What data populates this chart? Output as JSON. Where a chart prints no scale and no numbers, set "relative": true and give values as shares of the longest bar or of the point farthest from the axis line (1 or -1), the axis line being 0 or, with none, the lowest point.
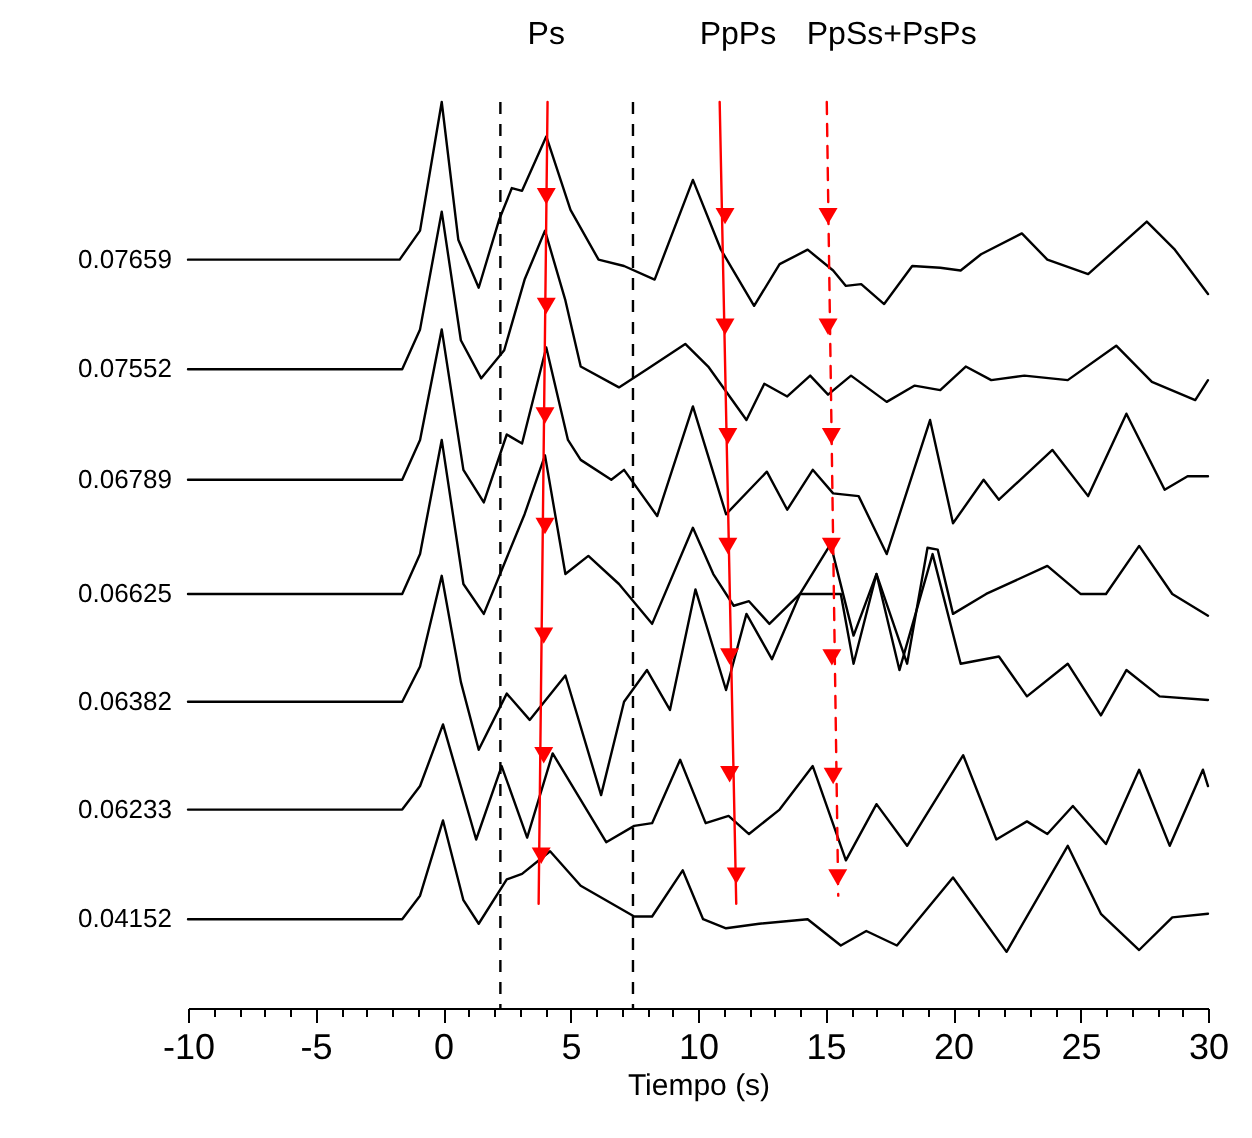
{
  "chart_data": {
    "type": "line",
    "relative": true,
    "xlabel": "Tiempo (s)",
    "xlim": [
      -10,
      30
    ],
    "xticks": [
      -10,
      {
        "value": -9,
        "label": null
      },
      {
        "value": -8,
        "label": null
      },
      {
        "value": -7,
        "label": null
      },
      {
        "value": -6,
        "label": null
      },
      -5,
      {
        "value": -4,
        "label": null
      },
      {
        "value": -3,
        "label": null
      },
      {
        "value": -2,
        "label": null
      },
      {
        "value": -1,
        "label": null
      },
      0,
      {
        "value": 1,
        "label": null
      },
      {
        "value": 2,
        "label": null
      },
      {
        "value": 3,
        "label": null
      },
      {
        "value": 4,
        "label": null
      },
      5,
      {
        "value": 6,
        "label": null
      },
      {
        "value": 7,
        "label": null
      },
      {
        "value": 8,
        "label": null
      },
      {
        "value": 9,
        "label": null
      },
      10,
      {
        "value": 11,
        "label": null
      },
      {
        "value": 12,
        "label": null
      },
      {
        "value": 13,
        "label": null
      },
      {
        "value": 14,
        "label": null
      },
      15,
      {
        "value": 16,
        "label": null
      },
      {
        "value": 17,
        "label": null
      },
      {
        "value": 18,
        "label": null
      },
      {
        "value": 19,
        "label": null
      },
      20,
      {
        "value": 21,
        "label": null
      },
      {
        "value": 22,
        "label": null
      },
      {
        "value": 23,
        "label": null
      },
      {
        "value": 24,
        "label": null
      },
      25,
      {
        "value": 26,
        "label": null
      },
      {
        "value": 27,
        "label": null
      },
      {
        "value": 28,
        "label": null
      },
      {
        "value": 29,
        "label": null
      },
      30
    ],
    "ref_lines": [
      {
        "axis": "x",
        "value": 2.25,
        "color": "#000000",
        "line_style": "dashed"
      },
      {
        "axis": "x",
        "value": 7.45,
        "color": "#000000",
        "line_style": "dashed"
      }
    ],
    "series": [
      {
        "name": "0.07659",
        "color": "#000000",
        "x": [
          -10,
          -1.7,
          -0.9,
          -0.05,
          0.6,
          1.4,
          2.2,
          2.7,
          3.1,
          4.05,
          5.0,
          6.1,
          7.1,
          8.3,
          9.8,
          10.9,
          12.2,
          13.2,
          14.3,
          15.3,
          15.8,
          16.4,
          17.3,
          18.4,
          19.5,
          20.3,
          21.1,
          22.7,
          23.7,
          25.3,
          27.6,
          28.7,
          30
        ],
        "values": [
          0.826,
          0.826,
          0.858,
          1,
          0.848,
          0.795,
          0.87,
          0.905,
          0.902,
          0.962,
          0.881,
          0.826,
          0.819,
          0.804,
          0.914,
          0.837,
          0.775,
          0.821,
          0.837,
          0.814,
          0.797,
          0.799,
          0.777,
          0.819,
          0.817,
          0.814,
          0.832,
          0.855,
          0.826,
          0.81,
          0.868,
          0.837,
          0.788
        ]
      },
      {
        "name": "0.07552",
        "color": "#000000",
        "x": [
          -10,
          -1.6,
          -0.9,
          -0.05,
          0.7,
          1.5,
          2.4,
          3.2,
          4.0,
          4.8,
          5.4,
          6.9,
          8.0,
          9.5,
          10.4,
          11.9,
          12.6,
          13.5,
          14.4,
          15.1,
          16.0,
          17.4,
          18.5,
          19.5,
          20.5,
          21.5,
          22.8,
          24.5,
          26.4,
          27.8,
          29.5,
          30
        ],
        "values": [
          0.705,
          0.705,
          0.749,
          0.879,
          0.737,
          0.695,
          0.726,
          0.804,
          0.858,
          0.781,
          0.708,
          0.685,
          0.705,
          0.733,
          0.708,
          0.649,
          0.689,
          0.675,
          0.698,
          0.677,
          0.698,
          0.669,
          0.687,
          0.682,
          0.708,
          0.693,
          0.698,
          0.693,
          0.731,
          0.691,
          0.671,
          0.693
        ]
      },
      {
        "name": "0.06789",
        "color": "#000000",
        "x": [
          -10,
          -1.6,
          -0.9,
          -0.05,
          0.8,
          1.6,
          2.5,
          3.1,
          4.05,
          4.9,
          5.4,
          6.6,
          7.1,
          8.4,
          9.8,
          11.1,
          12.7,
          13.5,
          14.5,
          15.3,
          16.3,
          17.4,
          19.1,
          20.0,
          21.2,
          21.8,
          23.9,
          25.3,
          26.8,
          28.3,
          29.2,
          30
        ],
        "values": [
          0.583,
          0.583,
          0.627,
          0.749,
          0.594,
          0.558,
          0.633,
          0.623,
          0.729,
          0.627,
          0.605,
          0.583,
          0.594,
          0.543,
          0.664,
          0.545,
          0.592,
          0.55,
          0.594,
          0.568,
          0.565,
          0.501,
          0.649,
          0.535,
          0.583,
          0.561,
          0.616,
          0.565,
          0.656,
          0.572,
          0.587,
          0.587
        ]
      },
      {
        "name": "0.06625",
        "color": "#000000",
        "x": [
          -10,
          -1.6,
          -0.9,
          -0.05,
          0.8,
          1.6,
          2.5,
          3.2,
          4.0,
          4.8,
          5.7,
          6.9,
          8.2,
          9.8,
          10.6,
          11.4,
          12.0,
          12.8,
          14.0,
          15.2,
          16.1,
          17.0,
          18.2,
          19.0,
          19.4,
          20.0,
          21.3,
          23.7,
          25.0,
          26.0,
          27.3,
          28.6,
          30
        ],
        "values": [
          0.457,
          0.457,
          0.501,
          0.627,
          0.468,
          0.435,
          0.497,
          0.545,
          0.61,
          0.479,
          0.499,
          0.468,
          0.424,
          0.53,
          0.479,
          0.444,
          0.449,
          0.424,
          0.457,
          0.512,
          0.411,
          0.479,
          0.38,
          0.508,
          0.506,
          0.435,
          0.457,
          0.488,
          0.457,
          0.457,
          0.51,
          0.457,
          0.433
        ]
      },
      {
        "name": "0.06382",
        "color": "#000000",
        "x": [
          -10,
          -1.6,
          -0.9,
          -0.05,
          0.7,
          1.4,
          2.5,
          3.4,
          4.8,
          6.2,
          7.1,
          8.0,
          8.9,
          9.9,
          11.1,
          11.9,
          12.9,
          14.0,
          15.6,
          16.1,
          17.0,
          17.9,
          19.2,
          20.3,
          21.8,
          22.9,
          24.5,
          25.8,
          26.8,
          28.1,
          30
        ],
        "values": [
          0.338,
          0.338,
          0.377,
          0.477,
          0.36,
          0.285,
          0.347,
          0.318,
          0.367,
          0.235,
          0.338,
          0.373,
          0.329,
          0.462,
          0.351,
          0.435,
          0.385,
          0.457,
          0.457,
          0.38,
          0.479,
          0.373,
          0.501,
          0.38,
          0.388,
          0.344,
          0.38,
          0.323,
          0.373,
          0.344,
          0.34
        ]
      },
      {
        "name": "0.06233",
        "color": "#000000",
        "x": [
          -10,
          -1.6,
          -0.9,
          0,
          1.3,
          2.3,
          3.3,
          4.3,
          6.4,
          7.5,
          8.2,
          9.3,
          10.3,
          11.2,
          12.0,
          13.2,
          14.5,
          15.8,
          17.0,
          18.2,
          20.4,
          21.7,
          22.9,
          23.7,
          24.7,
          26.0,
          27.3,
          28.5,
          29.8,
          30
        ],
        "values": [
          0.219,
          0.219,
          0.245,
          0.313,
          0.186,
          0.267,
          0.188,
          0.281,
          0.183,
          0.201,
          0.204,
          0.274,
          0.204,
          0.212,
          0.192,
          0.219,
          0.267,
          0.163,
          0.225,
          0.179,
          0.279,
          0.186,
          0.206,
          0.192,
          0.223,
          0.181,
          0.263,
          0.179,
          0.263,
          0.245
        ]
      },
      {
        "name": "0.04152",
        "color": "#000000",
        "x": [
          -10,
          -1.6,
          -0.9,
          0,
          0.8,
          1.4,
          2.5,
          3.1,
          4.2,
          5.4,
          7.5,
          8.2,
          9.4,
          10.2,
          11.1,
          12.4,
          14.3,
          15.6,
          16.6,
          17.8,
          20.0,
          22.1,
          24.5,
          25.8,
          27.3,
          28.6,
          30
        ],
        "values": [
          0.098,
          0.098,
          0.124,
          0.207,
          0.119,
          0.093,
          0.142,
          0.148,
          0.173,
          0.135,
          0.101,
          0.101,
          0.152,
          0.098,
          0.088,
          0.093,
          0.098,
          0.069,
          0.085,
          0.069,
          0.144,
          0.062,
          0.179,
          0.104,
          0.064,
          0.1,
          0.104
        ]
      },
      {
        "name": "Ps",
        "type": "line",
        "color": "#ff0000",
        "line_style": "solid",
        "x": [
          4.1,
          3.75
        ],
        "values": [
          1,
          0.115
        ]
      },
      {
        "type": "scatter",
        "marker": "triangle",
        "color": "#ff0000",
        "x": [
          4.05,
          4.05,
          4.0,
          4.0,
          3.95,
          3.95,
          3.85
        ],
        "values": [
          0.896,
          0.775,
          0.654,
          0.532,
          0.411,
          0.279,
          0.168
        ]
      },
      {
        "name": "PpPs",
        "type": "line",
        "color": "#ff0000",
        "line_style": "solid",
        "x": [
          10.85,
          11.5
        ],
        "values": [
          1,
          0.115
        ]
      },
      {
        "type": "scatter",
        "marker": "triangle",
        "color": "#ff0000",
        "x": [
          11.06,
          11.06,
          11.17,
          11.17,
          11.24,
          11.24,
          11.5
        ],
        "values": [
          0.874,
          0.752,
          0.631,
          0.51,
          0.388,
          0.258,
          0.146
        ]
      },
      {
        "name": "PpSs+PsPs",
        "type": "line",
        "color": "#ff0000",
        "line_style": "dashed",
        "x": [
          15.05,
          15.5
        ],
        "values": [
          1,
          0.124
        ]
      },
      {
        "type": "scatter",
        "marker": "triangle",
        "color": "#ff0000",
        "x": [
          15.1,
          15.1,
          15.23,
          15.23,
          15.25,
          15.3,
          15.48
        ],
        "values": [
          0.874,
          0.752,
          0.631,
          0.51,
          0.387,
          0.256,
          0.144
        ]
      }
    ]
  }
}
